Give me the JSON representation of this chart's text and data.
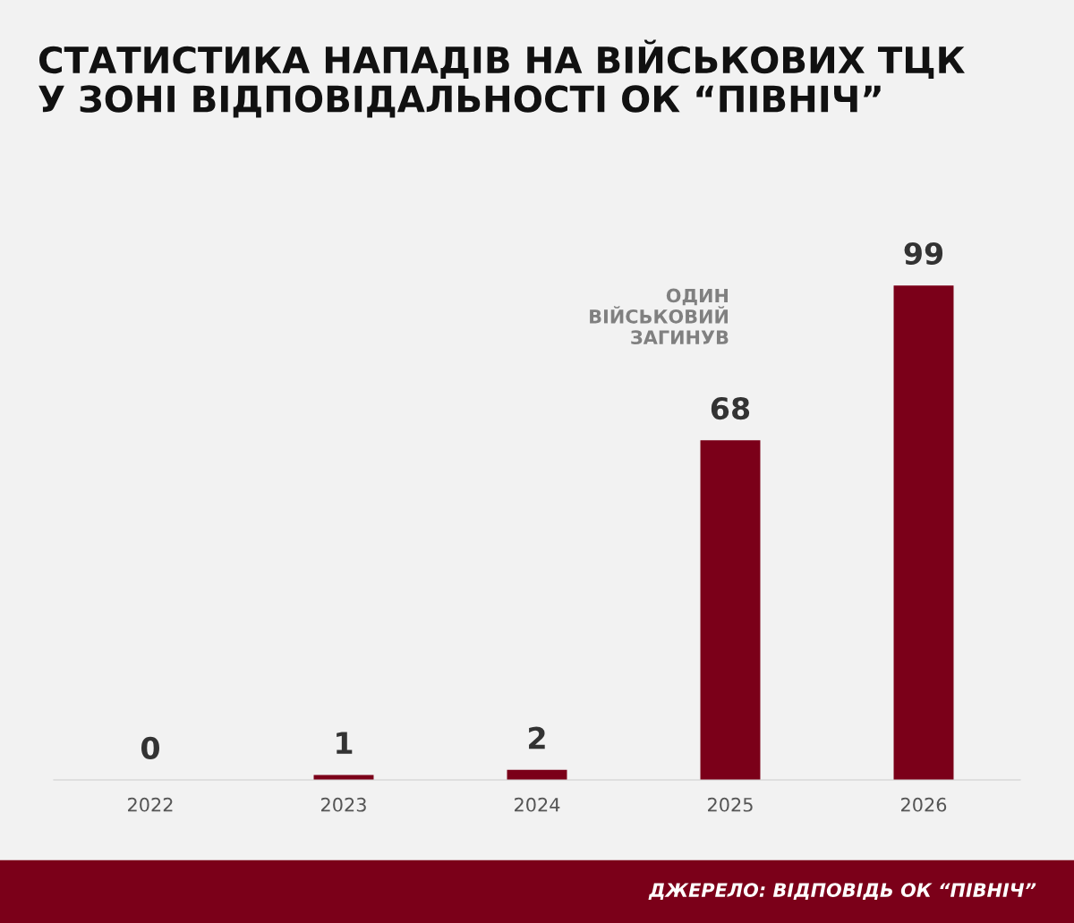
{
  "chart_data": {
    "type": "bar",
    "title": "СТАТИСТИКА НАПАДІВ НА ВІЙСЬКОВИХ ТЦК\nУ ЗОНІ ВІДПОВІДАЛЬНОСТІ ОК “ПІВНІЧ”",
    "categories": [
      "2022",
      "2023",
      "2024",
      "2025",
      "2026"
    ],
    "values": [
      0,
      1,
      2,
      68,
      99
    ],
    "color": "#7b0019",
    "data_labels": true,
    "grid": false,
    "legend": false,
    "annotations": [
      "ОДИН\nВІЙСЬКОВИЙ\nЗАГИНУВ",
      "ДЖЕРЕЛО: ВІДПОВІДЬ ОК “ПІВНІЧ”"
    ]
  }
}
